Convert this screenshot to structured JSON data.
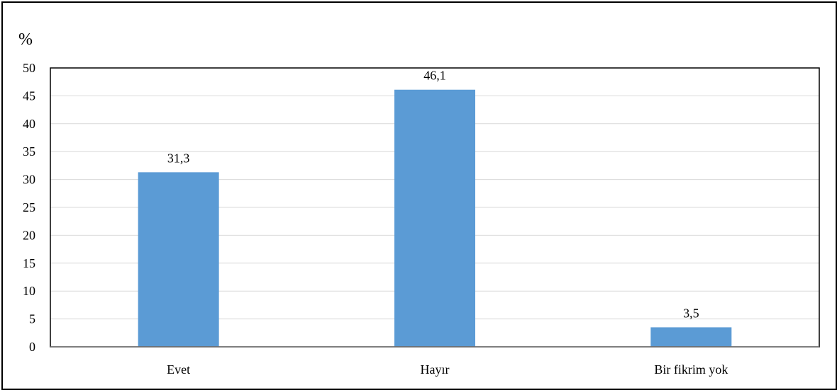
{
  "chart_data": {
    "type": "bar",
    "ylabel": "%",
    "categories": [
      "Evet",
      "Hayır",
      "Bir fikrim yok"
    ],
    "values": [
      31.3,
      46.1,
      3.5
    ],
    "value_labels": [
      "31,3",
      "46,1",
      "3,5"
    ],
    "ylim": [
      0,
      50
    ],
    "yticks": [
      0,
      5,
      10,
      15,
      20,
      25,
      30,
      35,
      40,
      45,
      50
    ],
    "grid": true,
    "colors": {
      "bar": "#5b9bd5",
      "grid": "#d9d9d9",
      "axis": "#000000"
    }
  }
}
